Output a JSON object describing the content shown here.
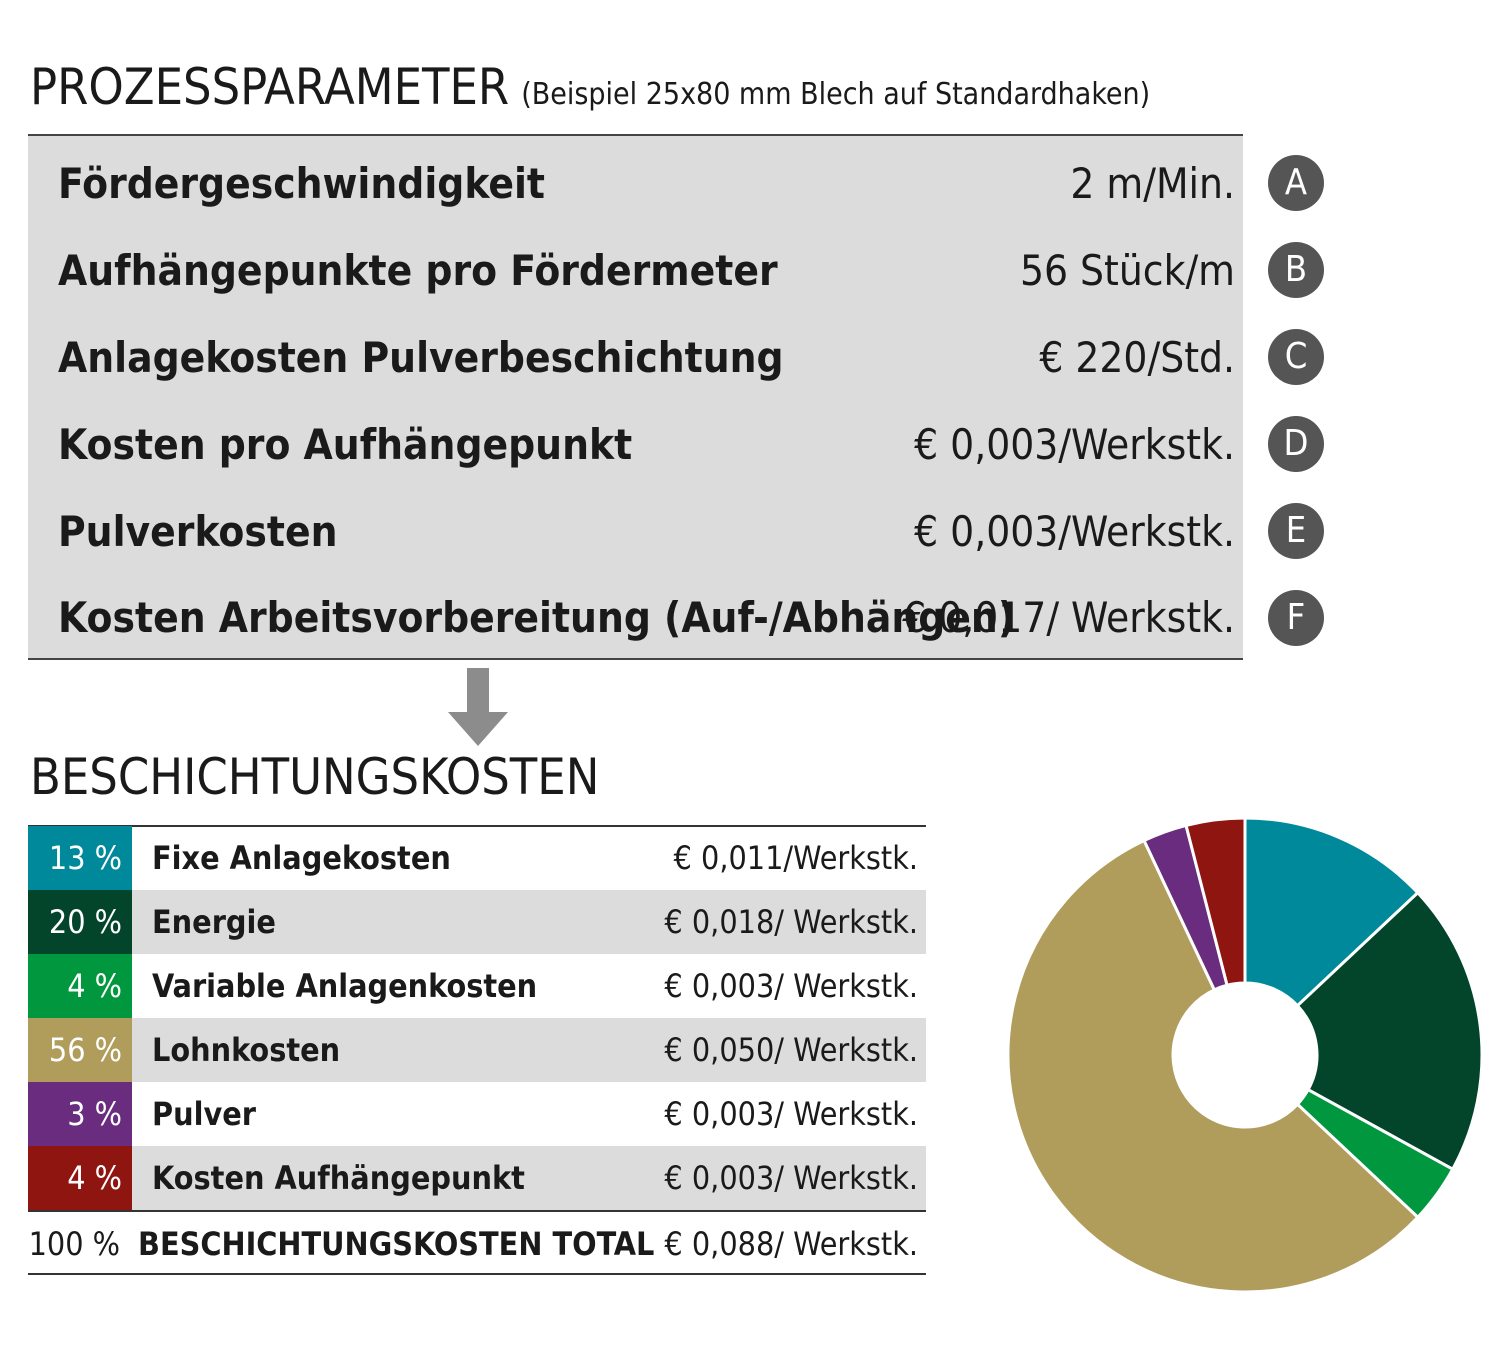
{
  "header": {
    "title": "PROZESSPARAMETER",
    "subtitle": "(Beispiel 25x80 mm Blech auf Standardhaken)"
  },
  "params": [
    {
      "label": "Fördergeschwindigkeit",
      "value": "2 m/Min.",
      "badge": "A"
    },
    {
      "label": "Aufhängepunkte pro Fördermeter",
      "value": "56 Stück/m",
      "badge": "B"
    },
    {
      "label": "Anlagekosten Pulverbeschichtung",
      "value": "€ 220/Std.",
      "badge": "C"
    },
    {
      "label": "Kosten pro Aufhängepunkt",
      "value": "€ 0,003/Werkstk.",
      "badge": "D"
    },
    {
      "label": "Pulverkosten",
      "value": "€ 0,003/Werkstk.",
      "badge": "E"
    },
    {
      "label": "Kosten Arbeitsvorbereitung (Auf-/Abhängen)",
      "value": "€ 0,017/ Werkstk.",
      "badge": "F"
    }
  ],
  "costs": {
    "title": "BESCHICHTUNGSKOSTEN",
    "rows": [
      {
        "pct": "13 %",
        "label": "Fixe Anlagekosten",
        "value": "€ 0,011/Werkstk.",
        "color": "#00899b"
      },
      {
        "pct": "20 %",
        "label": "Energie",
        "value": "€ 0,018/ Werkstk.",
        "color": "#03452a"
      },
      {
        "pct": "4 %",
        "label": "Variable Anlagenkosten",
        "value": "€ 0,003/ Werkstk.",
        "color": "#00973f"
      },
      {
        "pct": "56 %",
        "label": "Lohnkosten",
        "value": "€ 0,050/ Werkstk.",
        "color": "#b09d5c"
      },
      {
        "pct": "3 %",
        "label": "Pulver",
        "value": "€ 0,003/ Werkstk.",
        "color": "#6a2c7e"
      },
      {
        "pct": "4 %",
        "label": "Kosten Aufhängepunkt",
        "value": "€ 0,003/ Werkstk.",
        "color": "#8f1510"
      }
    ],
    "total": {
      "pct": "100 %",
      "label": "BESCHICHTUNGSKOSTEN TOTAL",
      "value": "€ 0,088/ Werkstk."
    }
  },
  "chart_data": {
    "type": "pie",
    "donut": true,
    "categories": [
      "Fixe Anlagekosten",
      "Energie",
      "Variable Anlagenkosten",
      "Lohnkosten",
      "Pulver",
      "Kosten Aufhängepunkt"
    ],
    "values": [
      13,
      20,
      4,
      56,
      3,
      4
    ],
    "colors": [
      "#00899b",
      "#03452a",
      "#00973f",
      "#b09d5c",
      "#6a2c7e",
      "#8f1510"
    ]
  }
}
